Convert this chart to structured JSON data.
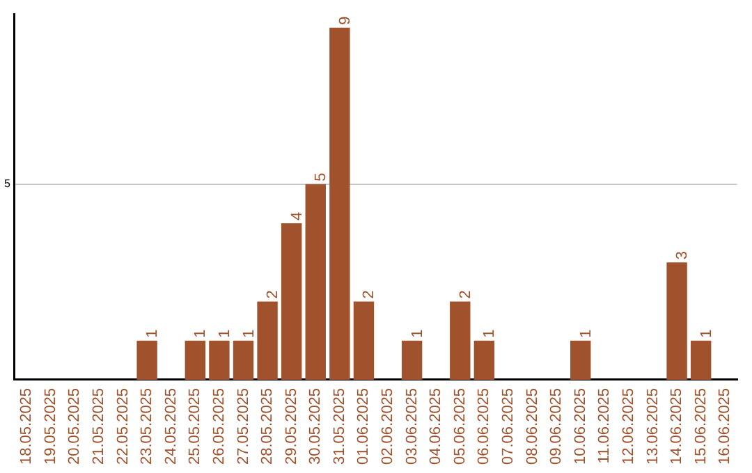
{
  "chart_data": {
    "type": "bar",
    "categories": [
      "18.05.2025",
      "19.05.2025",
      "20.05.2025",
      "21.05.2025",
      "22.05.2025",
      "23.05.2025",
      "24.05.2025",
      "25.05.2025",
      "26.05.2025",
      "27.05.2025",
      "28.05.2025",
      "29.05.2025",
      "30.05.2025",
      "31.05.2025",
      "01.06.2025",
      "02.06.2025",
      "03.06.2025",
      "04.06.2025",
      "05.06.2025",
      "06.06.2025",
      "07.06.2025",
      "08.06.2025",
      "09.06.2025",
      "10.06.2025",
      "11.06.2025",
      "12.06.2025",
      "13.06.2025",
      "14.06.2025",
      "15.06.2025",
      "16.06.2025"
    ],
    "values": [
      0,
      0,
      0,
      0,
      0,
      1,
      0,
      1,
      1,
      1,
      2,
      4,
      5,
      9,
      2,
      0,
      1,
      0,
      2,
      1,
      0,
      0,
      0,
      1,
      0,
      0,
      0,
      3,
      1,
      0
    ],
    "value_labels": [
      null,
      null,
      null,
      null,
      null,
      "1",
      null,
      "1",
      "1",
      "1",
      "2",
      "4",
      "5",
      "9",
      "2",
      null,
      "1",
      null,
      "2",
      "1",
      null,
      null,
      null,
      "1",
      null,
      null,
      null,
      "3",
      "1",
      null
    ],
    "color": "#a0522d",
    "ylim": [
      0,
      9.35
    ],
    "yticks": [
      5
    ],
    "grid": "y",
    "legend": false
  }
}
